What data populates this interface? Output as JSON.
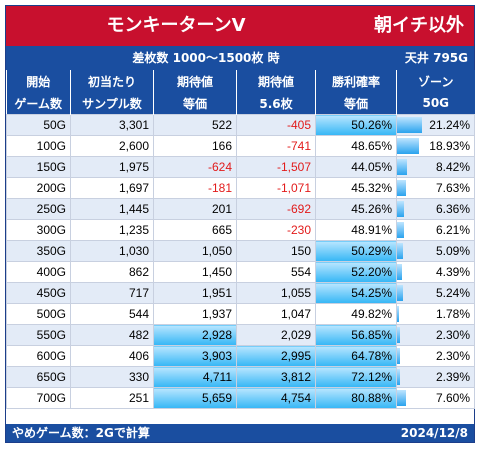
{
  "title": "モンキーターンV",
  "title_right": "朝イチ以外",
  "subtitle": "差枚数 1000〜1500枚 時",
  "subtitle_right": "天井 795G",
  "headers": [
    [
      "開始",
      "ゲーム数"
    ],
    [
      "初当たり",
      "サンプル数"
    ],
    [
      "期待値",
      "等価"
    ],
    [
      "期待値",
      "5.6枚"
    ],
    [
      "勝利確率",
      "等価"
    ],
    [
      "ゾーン",
      "50G"
    ]
  ],
  "rows": [
    {
      "start": "50G",
      "samples": "3,301",
      "ev": "522",
      "ev56": "-405",
      "win": "50.26%",
      "zone": "21.24%",
      "zone_val": 21.24,
      "hl_ev": false,
      "hl_ev56": false,
      "hl_win": true
    },
    {
      "start": "100G",
      "samples": "2,600",
      "ev": "166",
      "ev56": "-741",
      "win": "48.65%",
      "zone": "18.93%",
      "zone_val": 18.93,
      "hl_ev": false,
      "hl_ev56": false,
      "hl_win": false
    },
    {
      "start": "150G",
      "samples": "1,975",
      "ev": "-624",
      "ev56": "-1,507",
      "win": "44.05%",
      "zone": "8.42%",
      "zone_val": 8.42,
      "hl_ev": false,
      "hl_ev56": false,
      "hl_win": false
    },
    {
      "start": "200G",
      "samples": "1,697",
      "ev": "-181",
      "ev56": "-1,071",
      "win": "45.32%",
      "zone": "7.63%",
      "zone_val": 7.63,
      "hl_ev": false,
      "hl_ev56": false,
      "hl_win": false
    },
    {
      "start": "250G",
      "samples": "1,445",
      "ev": "201",
      "ev56": "-692",
      "win": "45.26%",
      "zone": "6.36%",
      "zone_val": 6.36,
      "hl_ev": false,
      "hl_ev56": false,
      "hl_win": false
    },
    {
      "start": "300G",
      "samples": "1,235",
      "ev": "665",
      "ev56": "-230",
      "win": "48.91%",
      "zone": "6.21%",
      "zone_val": 6.21,
      "hl_ev": false,
      "hl_ev56": false,
      "hl_win": false
    },
    {
      "start": "350G",
      "samples": "1,030",
      "ev": "1,050",
      "ev56": "150",
      "win": "50.29%",
      "zone": "5.09%",
      "zone_val": 5.09,
      "hl_ev": false,
      "hl_ev56": false,
      "hl_win": true
    },
    {
      "start": "400G",
      "samples": "862",
      "ev": "1,450",
      "ev56": "554",
      "win": "52.20%",
      "zone": "4.39%",
      "zone_val": 4.39,
      "hl_ev": false,
      "hl_ev56": false,
      "hl_win": true
    },
    {
      "start": "450G",
      "samples": "717",
      "ev": "1,951",
      "ev56": "1,055",
      "win": "54.25%",
      "zone": "5.24%",
      "zone_val": 5.24,
      "hl_ev": false,
      "hl_ev56": false,
      "hl_win": true
    },
    {
      "start": "500G",
      "samples": "544",
      "ev": "1,937",
      "ev56": "1,047",
      "win": "49.82%",
      "zone": "1.78%",
      "zone_val": 1.78,
      "hl_ev": false,
      "hl_ev56": false,
      "hl_win": false
    },
    {
      "start": "550G",
      "samples": "482",
      "ev": "2,928",
      "ev56": "2,029",
      "win": "56.85%",
      "zone": "2.30%",
      "zone_val": 2.3,
      "hl_ev": true,
      "hl_ev56": false,
      "hl_win": true
    },
    {
      "start": "600G",
      "samples": "406",
      "ev": "3,903",
      "ev56": "2,995",
      "win": "64.78%",
      "zone": "2.30%",
      "zone_val": 2.3,
      "hl_ev": true,
      "hl_ev56": true,
      "hl_win": true
    },
    {
      "start": "650G",
      "samples": "330",
      "ev": "4,711",
      "ev56": "3,812",
      "win": "72.12%",
      "zone": "2.39%",
      "zone_val": 2.39,
      "hl_ev": true,
      "hl_ev56": true,
      "hl_win": true
    },
    {
      "start": "700G",
      "samples": "251",
      "ev": "5,659",
      "ev56": "4,754",
      "win": "80.88%",
      "zone": "7.60%",
      "zone_val": 7.6,
      "hl_ev": true,
      "hl_ev56": true,
      "hl_win": true
    }
  ],
  "zone_max": 21.24,
  "footer_left": "やめゲーム数：2Gで計算",
  "footer_right": "2024/12/8",
  "colors": {
    "title_bg": "#c8102e",
    "header_bg": "#1a4ea0",
    "negative": "#e21b1b",
    "highlight": "#34b6f5"
  }
}
